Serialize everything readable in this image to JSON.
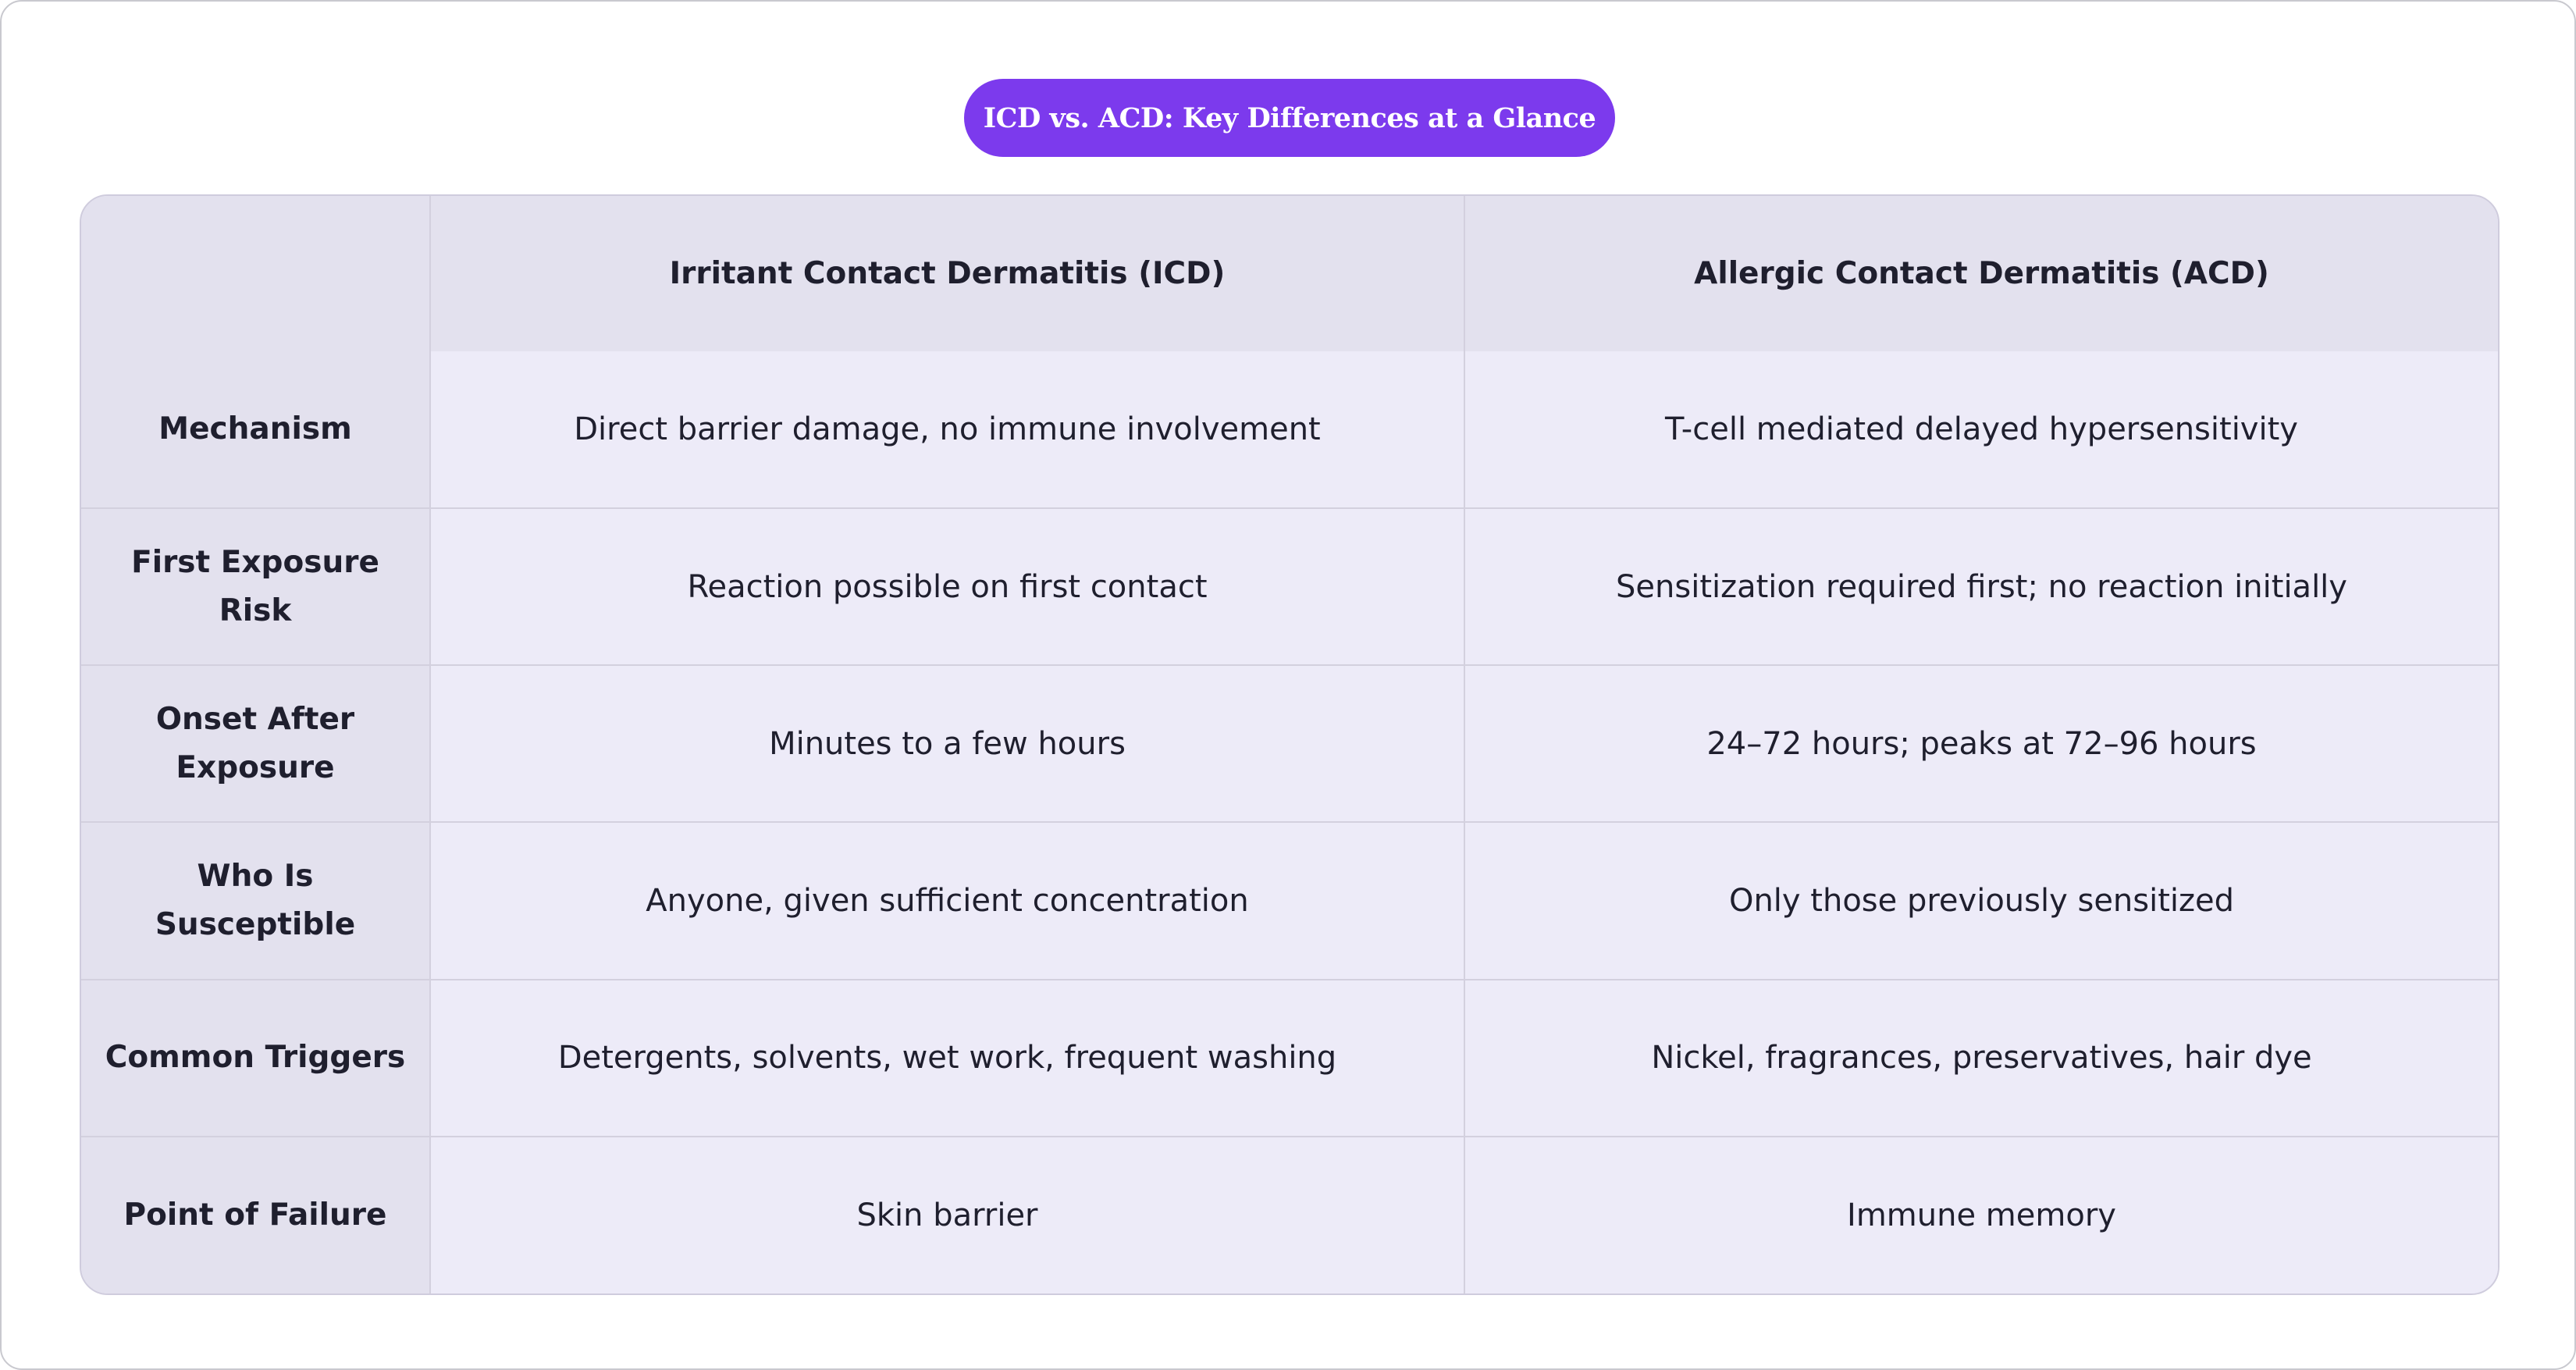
{
  "title": "ICD vs. ACD: Key Differences at a Glance",
  "table": {
    "headers": [
      "",
      "Irritant Contact Dermatitis (ICD)",
      "Allergic Contact Dermatitis (ACD)"
    ],
    "rows": [
      {
        "label": "Mechanism",
        "icd": "Direct barrier damage, no immune involvement",
        "acd": "T-cell mediated delayed hypersensitivity"
      },
      {
        "label": "First Exposure Risk",
        "icd": "Reaction possible on first contact",
        "acd": "Sensitization required first; no reaction initially"
      },
      {
        "label": "Onset After Exposure",
        "icd": "Minutes to a few hours",
        "acd": "24–72 hours; peaks at 72–96 hours"
      },
      {
        "label": "Who Is Susceptible",
        "icd": "Anyone, given sufficient concentration",
        "acd": "Only those previously sensitized"
      },
      {
        "label": "Common Triggers",
        "icd": "Detergents, solvents, wet work, frequent washing",
        "acd": "Nickel, fragrances, preservatives, hair dye"
      },
      {
        "label": "Point of Failure",
        "icd": "Skin barrier",
        "acd": "Immune memory"
      }
    ]
  },
  "colors": {
    "accent": "#7c3aed",
    "header_bg": "#e3e1ee",
    "cell_bg": "#edebf8"
  }
}
